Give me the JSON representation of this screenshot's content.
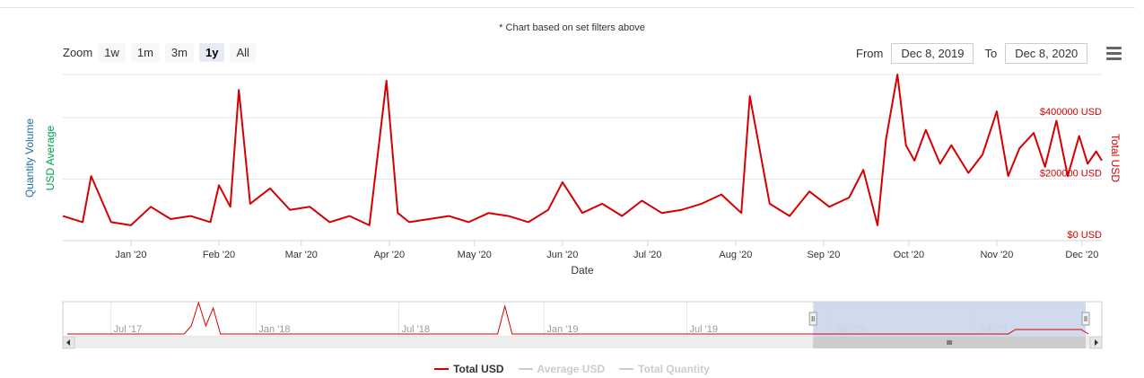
{
  "note": "* Chart based on set filters above",
  "zoom": {
    "label": "Zoom",
    "buttons": [
      "1w",
      "1m",
      "3m",
      "1y",
      "All"
    ],
    "active": "1y"
  },
  "range": {
    "from_label": "From",
    "from_value": "Dec 8, 2019",
    "to_label": "To",
    "to_value": "Dec 8, 2020"
  },
  "colors": {
    "total_usd": "#d60000",
    "average_usd": "#00a04a",
    "quantity": "#1f6fa8",
    "navigator_mask": "#ccd6eb"
  },
  "chart_data": {
    "type": "line",
    "x_axis": {
      "title": "Date",
      "type": "datetime",
      "ticks": [
        "Jan '20",
        "Feb '20",
        "Mar '20",
        "Apr '20",
        "May '20",
        "Jun '20",
        "Jul '20",
        "Aug '20",
        "Sep '20",
        "Oct '20",
        "Nov '20",
        "Dec '20"
      ]
    },
    "y_axes": [
      {
        "title": "Quantity Volume",
        "color": "#1f6fa8",
        "side": "left"
      },
      {
        "title": "USD Average",
        "color": "#00a04a",
        "side": "left"
      },
      {
        "title": "Total USD",
        "color": "#d60000",
        "side": "right",
        "ticks": [
          "$0 USD",
          "$200000 USD",
          "$400000 USD"
        ],
        "ylim": [
          0,
          540000
        ]
      }
    ],
    "series": [
      {
        "name": "Total USD",
        "visible": true,
        "x": [
          "2019-12-08",
          "2019-12-15",
          "2019-12-18",
          "2019-12-25",
          "2020-01-01",
          "2020-01-08",
          "2020-01-15",
          "2020-01-22",
          "2020-01-29",
          "2020-02-01",
          "2020-02-05",
          "2020-02-08",
          "2020-02-12",
          "2020-02-19",
          "2020-02-26",
          "2020-03-04",
          "2020-03-11",
          "2020-03-18",
          "2020-03-25",
          "2020-03-31",
          "2020-04-04",
          "2020-04-08",
          "2020-04-15",
          "2020-04-22",
          "2020-04-29",
          "2020-05-06",
          "2020-05-13",
          "2020-05-20",
          "2020-05-27",
          "2020-06-01",
          "2020-06-08",
          "2020-06-15",
          "2020-06-22",
          "2020-06-29",
          "2020-07-06",
          "2020-07-13",
          "2020-07-20",
          "2020-07-27",
          "2020-08-03",
          "2020-08-06",
          "2020-08-13",
          "2020-08-20",
          "2020-08-27",
          "2020-09-03",
          "2020-09-10",
          "2020-09-15",
          "2020-09-20",
          "2020-09-23",
          "2020-09-27",
          "2020-09-30",
          "2020-10-03",
          "2020-10-07",
          "2020-10-12",
          "2020-10-16",
          "2020-10-22",
          "2020-10-27",
          "2020-11-01",
          "2020-11-05",
          "2020-11-09",
          "2020-11-14",
          "2020-11-18",
          "2020-11-22",
          "2020-11-26",
          "2020-11-30",
          "2020-12-03",
          "2020-12-06",
          "2020-12-08"
        ],
        "y": [
          80000,
          60000,
          210000,
          60000,
          50000,
          110000,
          70000,
          80000,
          60000,
          180000,
          110000,
          490000,
          120000,
          170000,
          100000,
          110000,
          60000,
          80000,
          50000,
          520000,
          90000,
          60000,
          70000,
          80000,
          60000,
          90000,
          80000,
          60000,
          100000,
          190000,
          90000,
          120000,
          80000,
          130000,
          90000,
          100000,
          120000,
          150000,
          90000,
          470000,
          120000,
          80000,
          160000,
          110000,
          140000,
          230000,
          50000,
          330000,
          540000,
          310000,
          260000,
          360000,
          250000,
          310000,
          220000,
          280000,
          420000,
          210000,
          300000,
          350000,
          240000,
          390000,
          210000,
          340000,
          250000,
          290000,
          260000
        ]
      },
      {
        "name": "Average USD",
        "visible": false
      },
      {
        "name": "Total Quantity",
        "visible": false
      }
    ]
  },
  "navigator": {
    "ticks": [
      "Jul '17",
      "Jan '18",
      "Jul '18",
      "Jan '19",
      "Jul '19",
      "Jan '20",
      "Jul '20"
    ],
    "selected_from": "Dec 8, 2019",
    "selected_to": "Dec 8, 2020"
  },
  "legend": [
    {
      "name": "Total USD",
      "visible": true
    },
    {
      "name": "Average USD",
      "visible": false
    },
    {
      "name": "Total Quantity",
      "visible": false
    }
  ]
}
